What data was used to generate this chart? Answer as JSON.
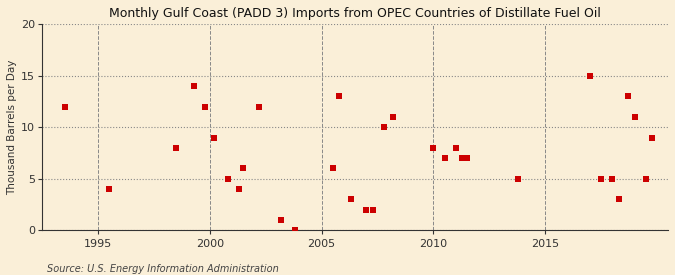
{
  "title": "Monthly Gulf Coast (PADD 3) Imports from OPEC Countries of Distillate Fuel Oil",
  "ylabel": "Thousand Barrels per Day",
  "source": "Source: U.S. Energy Information Administration",
  "background_color": "#faefd8",
  "marker_color": "#cc0000",
  "xlim": [
    1992.5,
    2020.5
  ],
  "ylim": [
    0,
    20
  ],
  "yticks": [
    0,
    5,
    10,
    15,
    20
  ],
  "xticks": [
    1995,
    2000,
    2005,
    2010,
    2015
  ],
  "points": [
    [
      1993.5,
      12
    ],
    [
      1995.5,
      4
    ],
    [
      1998.5,
      8
    ],
    [
      1999.3,
      14
    ],
    [
      1999.8,
      12
    ],
    [
      2000.2,
      9
    ],
    [
      2000.8,
      5
    ],
    [
      2001.3,
      4
    ],
    [
      2001.5,
      6
    ],
    [
      2002.2,
      12
    ],
    [
      2003.2,
      1
    ],
    [
      2003.8,
      0
    ],
    [
      2005.5,
      6
    ],
    [
      2005.8,
      13
    ],
    [
      2006.3,
      3
    ],
    [
      2007.0,
      2
    ],
    [
      2007.3,
      2
    ],
    [
      2007.8,
      10
    ],
    [
      2008.2,
      11
    ],
    [
      2010.0,
      8
    ],
    [
      2010.5,
      7
    ],
    [
      2011.0,
      8
    ],
    [
      2011.3,
      7
    ],
    [
      2011.5,
      7
    ],
    [
      2013.8,
      5
    ],
    [
      2017.0,
      15
    ],
    [
      2017.5,
      5
    ],
    [
      2018.0,
      5
    ],
    [
      2018.3,
      3
    ],
    [
      2018.7,
      13
    ],
    [
      2019.0,
      11
    ],
    [
      2019.5,
      5
    ],
    [
      2019.8,
      9
    ]
  ]
}
